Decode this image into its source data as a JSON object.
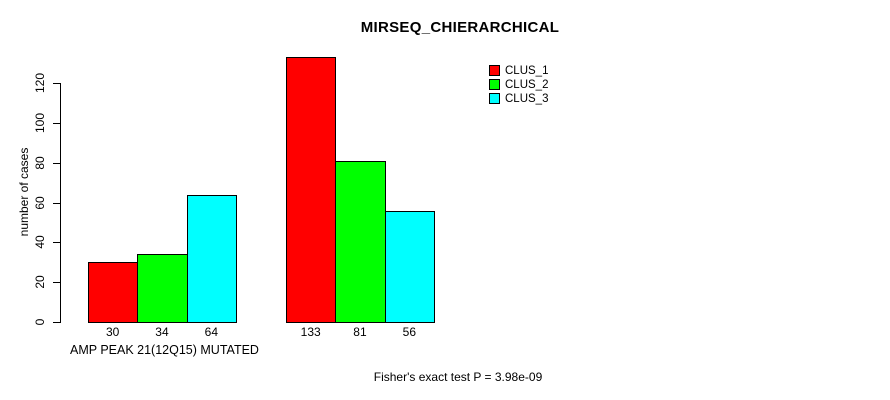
{
  "title": "MIRSEQ_CHIERARCHICAL",
  "y_axis": {
    "label": "number of cases",
    "ticks": [
      0,
      20,
      40,
      60,
      80,
      100,
      120
    ]
  },
  "x_axis": {
    "label": "AMP PEAK 21(12Q15) MUTATED"
  },
  "footer": "Fisher's exact test P = 3.98e-09",
  "colors": {
    "clus_1": "#ff0000",
    "clus_2": "#00ff00",
    "clus_3": "#00ffff",
    "bar_border": "#000000",
    "text": "#000000",
    "background": "#ffffff"
  },
  "chart_data": {
    "type": "bar",
    "title": "MIRSEQ_CHIERARCHICAL",
    "xlabel": "AMP PEAK 21(12Q15) MUTATED",
    "ylabel": "number of cases",
    "annotation": "Fisher's exact test P = 3.98e-09",
    "grouped": true,
    "n_groups": 2,
    "series": [
      {
        "name": "CLUS_1",
        "color": "#ff0000",
        "values": [
          30,
          133
        ]
      },
      {
        "name": "CLUS_2",
        "color": "#00ff00",
        "values": [
          34,
          81
        ]
      },
      {
        "name": "CLUS_3",
        "color": "#00ffff",
        "values": [
          64,
          56
        ]
      }
    ],
    "bar_value_labels": [
      [
        30,
        34,
        64
      ],
      [
        133,
        81,
        56
      ]
    ],
    "yticks": [
      0,
      20,
      40,
      60,
      80,
      100,
      120
    ],
    "ylim": [
      0,
      133
    ],
    "grid": false,
    "legend_position": "top-right"
  }
}
